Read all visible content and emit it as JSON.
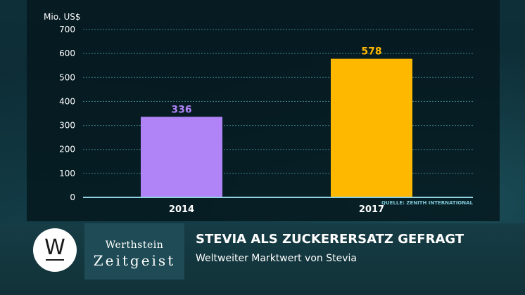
{
  "chart_data": {
    "type": "bar",
    "unit_label": "Mio. US$",
    "categories": [
      "2014",
      "2017"
    ],
    "values": [
      336,
      578
    ],
    "value_labels": [
      "336",
      "578"
    ],
    "bar_colors": [
      "#b083f7",
      "#ffb800"
    ],
    "ylim": [
      0,
      700
    ],
    "yticks": [
      0,
      100,
      200,
      300,
      400,
      500,
      600,
      700
    ],
    "grid": true,
    "source": "QUELLE: ZENITH INTERNATIONAL"
  },
  "footer": {
    "logo_letter": "W",
    "brand_line1": "Werthstein",
    "brand_line2": "Zeitgeist",
    "headline": "STEVIA ALS ZUCKERERSATZ GEFRAGT",
    "subline": "Weltweiter Marktwert von Stevia"
  },
  "colors": {
    "axis": "#8fd3e0",
    "grid": "#3f7f8d",
    "tick_text": "#ffffff"
  }
}
